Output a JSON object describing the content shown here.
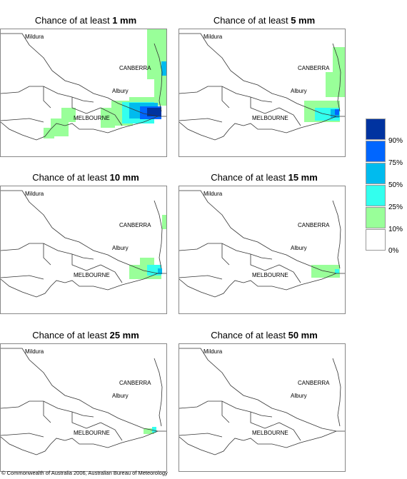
{
  "panels": [
    {
      "title_prefix": "Chance of at least ",
      "amount": "1 mm"
    },
    {
      "title_prefix": "Chance of at least ",
      "amount": "5 mm"
    },
    {
      "title_prefix": "Chance of at least ",
      "amount": "10 mm"
    },
    {
      "title_prefix": "Chance of at least ",
      "amount": "15 mm"
    },
    {
      "title_prefix": "Chance of at least ",
      "amount": "25 mm"
    },
    {
      "title_prefix": "Chance of at least ",
      "amount": "50 mm"
    }
  ],
  "places": {
    "mildura": "Mildura",
    "canberra": "CANBERRA",
    "albury": "Albury",
    "melbourne": "MELBOURNE"
  },
  "legend": {
    "labels": [
      "90%",
      "75%",
      "50%",
      "25%",
      "10%",
      "0%"
    ],
    "colors": [
      "#0033a0",
      "#0066ff",
      "#00bbee",
      "#33ffee",
      "#99ff99",
      "#ffffff"
    ]
  },
  "footer": "© Commonwealth of Australia 2006, Australian Bureau of Meteorology"
}
